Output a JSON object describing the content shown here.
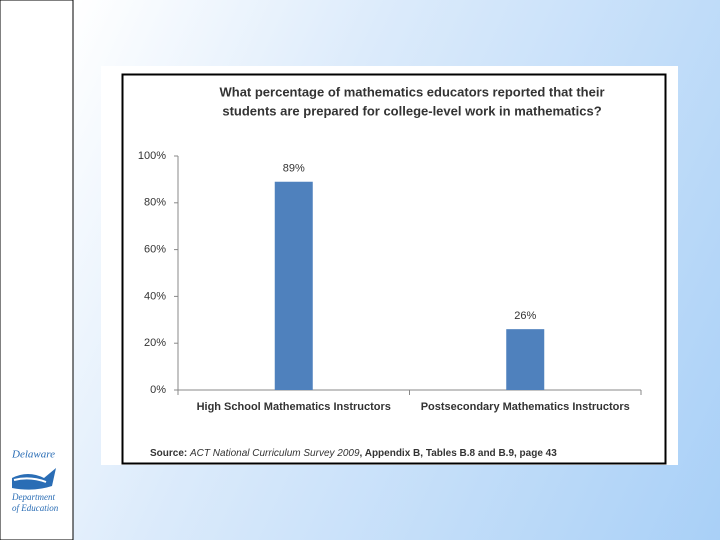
{
  "chart_data": {
    "type": "bar",
    "title": [
      "What percentage of mathematics educators reported that their",
      "students are prepared for college-level work in mathematics?"
    ],
    "categories": [
      "High School Mathematics Instructors",
      "Postsecondary Mathematics Instructors"
    ],
    "values": [
      89,
      26
    ],
    "value_labels": [
      "89%",
      "26%"
    ],
    "color": "#4f81bd",
    "ylim": [
      0,
      100
    ],
    "yticks": [
      {
        "value": 0,
        "label": "0%"
      },
      {
        "value": 20,
        "label": "20%"
      },
      {
        "value": 40,
        "label": "40%"
      },
      {
        "value": 60,
        "label": "60%"
      },
      {
        "value": 80,
        "label": "80%"
      },
      {
        "value": 100,
        "label": "100%"
      }
    ],
    "grid": false,
    "source": [
      "Source:",
      "ACT National Curriculum Survey 2009",
      ", Appendix B, Tables B.8 and B.9, page 43"
    ]
  },
  "logo": [
    "Delaware",
    "Department",
    "of Education"
  ]
}
